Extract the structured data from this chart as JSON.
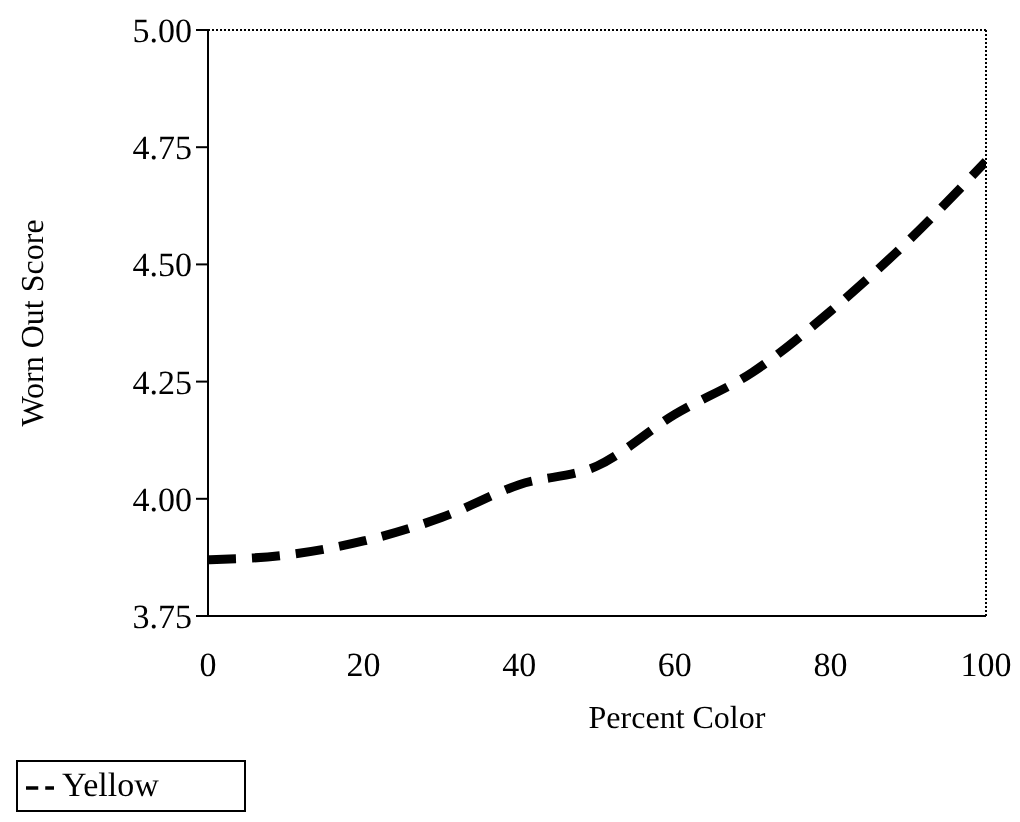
{
  "chart_data": {
    "type": "line",
    "xlabel": "Percent Color",
    "ylabel": "Worn Out Score",
    "x": [
      0,
      10,
      20,
      30,
      40,
      50,
      60,
      70,
      80,
      90,
      100
    ],
    "series": [
      {
        "name": "Yellow",
        "color": "#000000",
        "values": [
          3.87,
          3.88,
          3.91,
          3.96,
          4.03,
          4.07,
          4.18,
          4.27,
          4.4,
          4.55,
          4.72
        ]
      }
    ],
    "xlim": [
      0,
      100
    ],
    "xticks": [
      0,
      20,
      40,
      60,
      80,
      100
    ],
    "ylim": [
      3.75,
      5.0
    ],
    "yticks": [
      3.75,
      {
        "value": 4.0,
        "label": "4.00"
      },
      4.25,
      {
        "value": 4.5,
        "label": "4.50"
      },
      4.75,
      {
        "value": 5.0,
        "label": "5.00"
      }
    ],
    "legend": "bottom left",
    "line_style": "dashed",
    "marker": "none",
    "grid": false
  }
}
